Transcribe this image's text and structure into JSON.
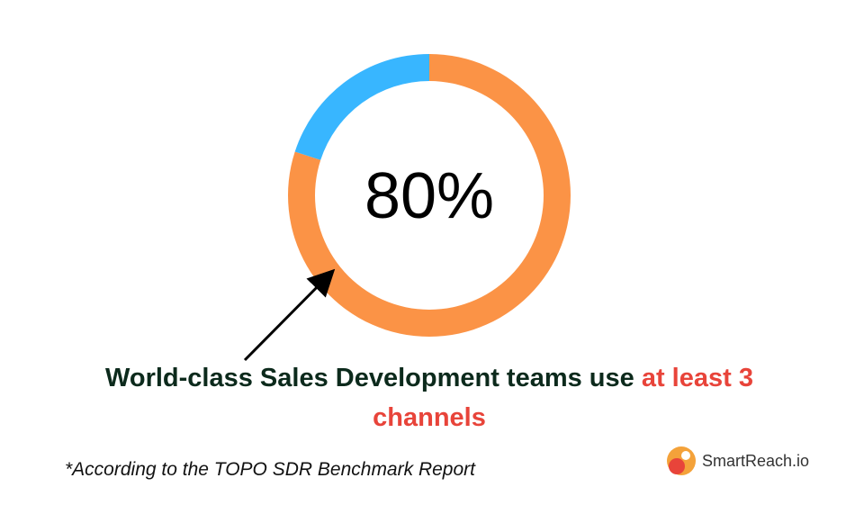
{
  "chart_data": {
    "type": "donut",
    "values": [
      80,
      20
    ],
    "value_labels": [
      "80%",
      null
    ],
    "colors": [
      "#fb9346",
      "#38b6ff"
    ]
  },
  "caption": {
    "text": "World-class Sales Development teams use",
    "highlight": "at least 3 channels"
  },
  "footnote": "*According to the TOPO SDR Benchmark Report",
  "logo": "SmartReach.io"
}
